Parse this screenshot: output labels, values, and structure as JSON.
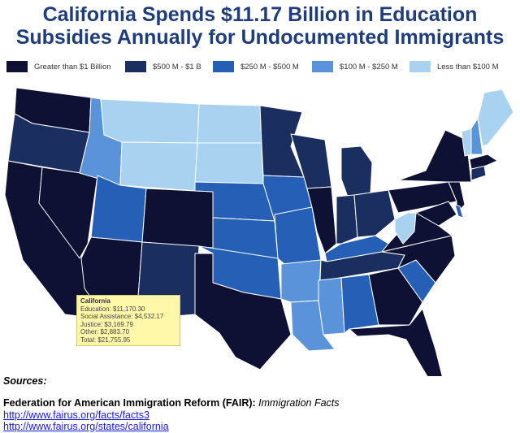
{
  "title": {
    "line1": "California Spends $11.17 Billion in Education",
    "line2": "Subsidies Annually for Undocumented Immigrants"
  },
  "legend": [
    {
      "label": "Greater than $1 Billion",
      "color": "#0e1133"
    },
    {
      "label": "$500 M - $1 B",
      "color": "#1a2f60"
    },
    {
      "label": "$250 M - $500 M",
      "color": "#2660b6"
    },
    {
      "label": "$100 M - $250 M",
      "color": "#5a93d9"
    },
    {
      "label": "Less than $100 M",
      "color": "#a9d2f1"
    }
  ],
  "tooltip": {
    "state": "California",
    "lines": [
      "Education: $11,170.30",
      "Social Assistance: $4,532.17",
      "Justice: $3,169.79",
      "Other: $2,883.70",
      "Total: $21,755.95"
    ]
  },
  "sources": {
    "label": "Sources:",
    "org": "Federation for American Immigration Reform (FAIR):",
    "doc": "Immigration Facts",
    "links": [
      "http://www.fairus.org/facts/facts3",
      "http://www.fairus.org/states/california"
    ]
  },
  "map_data": {
    "tier_by_state": {
      "WA": 0,
      "CA": 0,
      "NV": 0,
      "AZ": 0,
      "CO": 0,
      "TX": 0,
      "IL": 0,
      "NY": 0,
      "NJ": 0,
      "PA": 0,
      "MD": 0,
      "VA": 0,
      "NC": 0,
      "GA": 0,
      "FL": 0,
      "MA": 0,
      "OR": 1,
      "MN": 1,
      "WI": 1,
      "MI": 1,
      "IN": 1,
      "OH": 1,
      "TN": 1,
      "NM": 1,
      "CT": 1,
      "UT": 2,
      "KS": 2,
      "NE": 2,
      "IA": 2,
      "MO": 2,
      "OK": 2,
      "KY": 2,
      "AL": 2,
      "SC": 2,
      "DE": 2,
      "ID": 3,
      "AR": 3,
      "LA": 3,
      "MS": 3,
      "NH": 3,
      "MT": 4,
      "WY": 4,
      "ND": 4,
      "SD": 4,
      "WV": 4,
      "ME": 4,
      "VT": 4
    }
  }
}
